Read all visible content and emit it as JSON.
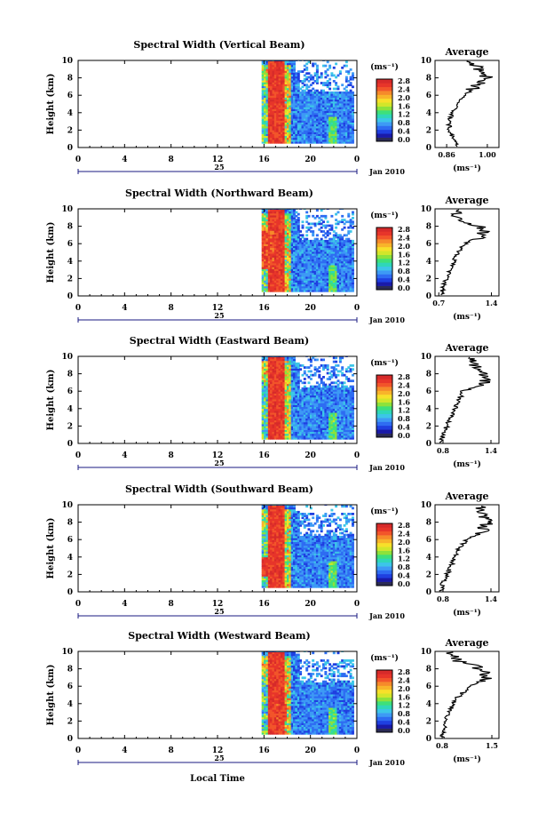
{
  "page": {
    "width": 624,
    "height": 929
  },
  "x_axis_label": "Local Time",
  "chart_data": [
    {
      "type": "heatmap",
      "title": "Spectral Width (Vertical Beam)",
      "ylabel": "Height (km)",
      "xlabel": "Local Time",
      "ylim": [
        0,
        10
      ],
      "xlim": [
        0,
        24
      ],
      "x_ticks": [
        "0",
        "4",
        "8",
        "12",
        "16",
        "20",
        "0"
      ],
      "y_ticks": [
        "0",
        "2",
        "4",
        "6",
        "8",
        "10"
      ],
      "date_label": "25",
      "month_label": "Jan 2010",
      "colorbar_unit": "(ms⁻¹)",
      "colorbar_ticks": [
        "0.0",
        "0.4",
        "0.8",
        "1.2",
        "1.6",
        "2.0",
        "2.4",
        "2.8"
      ],
      "average_profile": {
        "title": "Average",
        "xlabel": "(ms⁻¹)",
        "x_ticks": [
          "0.86",
          "1.00"
        ],
        "xlim": [
          0.82,
          1.04
        ],
        "ylim": [
          0,
          10
        ],
        "height_km": [
          0.2,
          1.0,
          2.0,
          3.0,
          4.0,
          5.0,
          6.0,
          7.0,
          8.0,
          9.0,
          9.8
        ],
        "values": [
          0.9,
          0.88,
          0.87,
          0.87,
          0.88,
          0.9,
          0.92,
          0.96,
          1.0,
          0.97,
          0.95
        ]
      }
    },
    {
      "type": "heatmap",
      "title": "Spectral Width (Northward Beam)",
      "ylabel": "Height (km)",
      "xlabel": "Local Time",
      "ylim": [
        0,
        10
      ],
      "xlim": [
        0,
        24
      ],
      "x_ticks": [
        "0",
        "4",
        "8",
        "12",
        "16",
        "20",
        "0"
      ],
      "y_ticks": [
        "0",
        "2",
        "4",
        "6",
        "8",
        "10"
      ],
      "date_label": "25",
      "month_label": "Jan 2010",
      "colorbar_unit": "(ms⁻¹)",
      "colorbar_ticks": [
        "0.0",
        "0.4",
        "0.8",
        "1.2",
        "1.6",
        "2.0",
        "2.4",
        "2.8"
      ],
      "average_profile": {
        "title": "Average",
        "xlabel": "(ms⁻¹)",
        "x_ticks": [
          "0.7",
          "1.4"
        ],
        "xlim": [
          0.65,
          1.5
        ],
        "ylim": [
          0,
          10
        ],
        "height_km": [
          0.2,
          1.0,
          2.0,
          3.0,
          4.0,
          5.0,
          6.0,
          7.0,
          8.0,
          9.0,
          9.8
        ],
        "values": [
          0.75,
          0.75,
          0.8,
          0.85,
          0.9,
          0.95,
          1.05,
          1.3,
          1.25,
          0.95,
          0.9
        ]
      }
    },
    {
      "type": "heatmap",
      "title": "Spectral Width (Eastward Beam)",
      "ylabel": "Height (km)",
      "xlabel": "Local Time",
      "ylim": [
        0,
        10
      ],
      "xlim": [
        0,
        24
      ],
      "x_ticks": [
        "0",
        "4",
        "8",
        "12",
        "16",
        "20",
        "0"
      ],
      "y_ticks": [
        "0",
        "2",
        "4",
        "6",
        "8",
        "10"
      ],
      "date_label": "25",
      "month_label": "Jan 2010",
      "colorbar_unit": "(ms⁻¹)",
      "colorbar_ticks": [
        "0.0",
        "0.4",
        "0.8",
        "1.2",
        "1.6",
        "2.0",
        "2.4",
        "2.8"
      ],
      "average_profile": {
        "title": "Average",
        "xlabel": "(ms⁻¹)",
        "x_ticks": [
          "0.8",
          "1.4"
        ],
        "xlim": [
          0.7,
          1.5
        ],
        "ylim": [
          0,
          10
        ],
        "height_km": [
          0.2,
          1.0,
          2.0,
          3.0,
          4.0,
          5.0,
          6.0,
          7.0,
          8.0,
          9.0,
          9.8
        ],
        "values": [
          0.78,
          0.8,
          0.85,
          0.9,
          0.95,
          1.0,
          1.05,
          1.35,
          1.3,
          1.2,
          1.1
        ]
      }
    },
    {
      "type": "heatmap",
      "title": "Spectral Width (Southward Beam)",
      "ylabel": "Height (km)",
      "xlabel": "Local Time",
      "ylim": [
        0,
        10
      ],
      "xlim": [
        0,
        24
      ],
      "x_ticks": [
        "0",
        "4",
        "8",
        "12",
        "16",
        "20",
        "0"
      ],
      "y_ticks": [
        "0",
        "2",
        "4",
        "6",
        "8",
        "10"
      ],
      "date_label": "25",
      "month_label": "Jan 2010",
      "colorbar_unit": "(ms⁻¹)",
      "colorbar_ticks": [
        "0.0",
        "0.4",
        "0.8",
        "1.2",
        "1.6",
        "2.0",
        "2.4",
        "2.8"
      ],
      "average_profile": {
        "title": "Average",
        "xlabel": "(ms⁻¹)",
        "x_ticks": [
          "0.8",
          "1.4"
        ],
        "xlim": [
          0.7,
          1.5
        ],
        "ylim": [
          0,
          10
        ],
        "height_km": [
          0.2,
          1.0,
          2.0,
          3.0,
          4.0,
          5.0,
          6.0,
          7.0,
          8.0,
          9.0,
          9.8
        ],
        "values": [
          0.78,
          0.8,
          0.85,
          0.9,
          0.95,
          1.0,
          1.1,
          1.3,
          1.35,
          1.3,
          1.25
        ]
      }
    },
    {
      "type": "heatmap",
      "title": "Spectral Width (Westward Beam)",
      "ylabel": "Height (km)",
      "xlabel": "Local Time",
      "ylim": [
        0,
        10
      ],
      "xlim": [
        0,
        24
      ],
      "x_ticks": [
        "0",
        "4",
        "8",
        "12",
        "16",
        "20",
        "0"
      ],
      "y_ticks": [
        "0",
        "2",
        "4",
        "6",
        "8",
        "10"
      ],
      "date_label": "25",
      "month_label": "Jan 2010",
      "colorbar_unit": "(ms⁻¹)",
      "colorbar_ticks": [
        "0.0",
        "0.4",
        "0.8",
        "1.2",
        "1.6",
        "2.0",
        "2.4",
        "2.8"
      ],
      "average_profile": {
        "title": "Average",
        "xlabel": "(ms⁻¹)",
        "x_ticks": [
          "0.8",
          "1.5"
        ],
        "xlim": [
          0.7,
          1.6
        ],
        "ylim": [
          0,
          10
        ],
        "height_km": [
          0.2,
          1.0,
          2.0,
          3.0,
          4.0,
          5.0,
          6.0,
          7.0,
          8.0,
          9.0,
          9.8
        ],
        "values": [
          0.8,
          0.82,
          0.85,
          0.9,
          0.95,
          1.05,
          1.2,
          1.45,
          1.35,
          1.0,
          0.9
        ]
      }
    }
  ]
}
